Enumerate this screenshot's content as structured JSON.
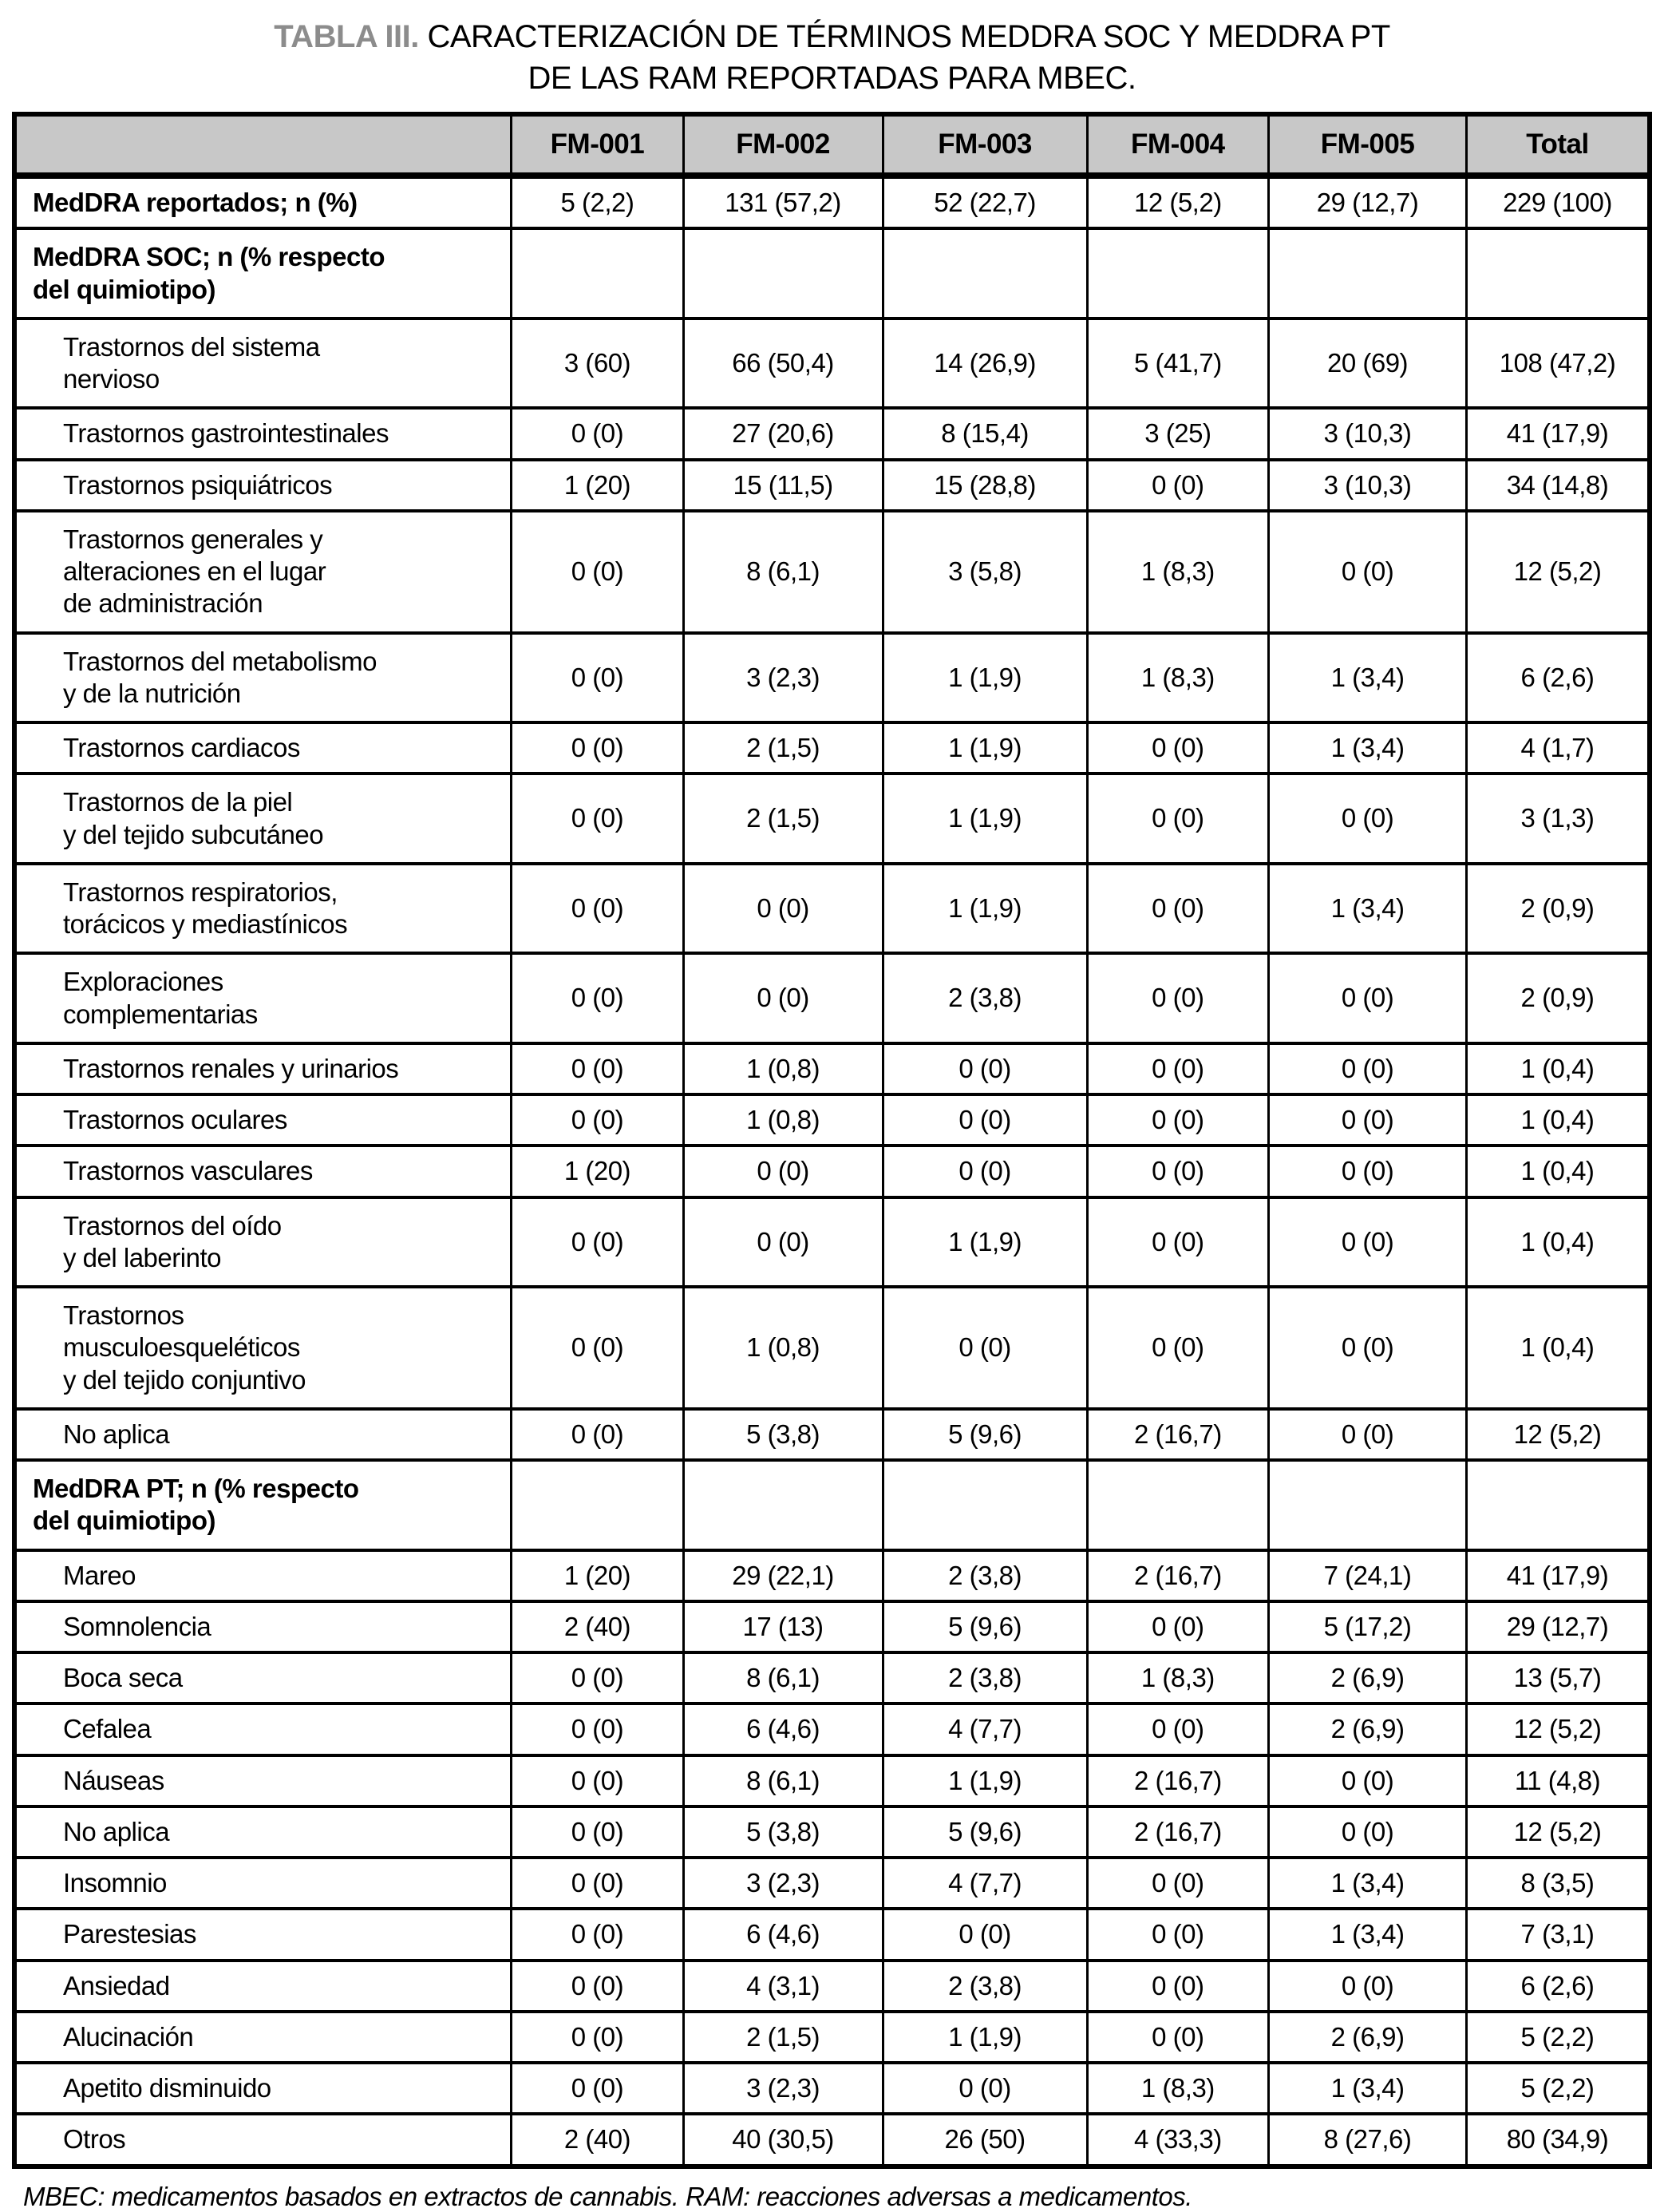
{
  "title": {
    "table_number": "TABLA III.",
    "text": " CARACTERIZACIÓN DE TÉRMINOS MEDDRA SOC Y MEDDRA PT\nDE LAS RAM REPORTADAS PARA MBEC."
  },
  "footnote": "MBEC: medicamentos basados en extractos de cannabis. RAM: reacciones adversas a medicamentos.",
  "colors": {
    "header_bg": "#c8c8c8",
    "title_number_gray": "#8c8c8c",
    "border": "#000000"
  },
  "table": {
    "columns": [
      "",
      "FM-001",
      "FM-002",
      "FM-003",
      "FM-004",
      "FM-005",
      "Total"
    ],
    "rows": [
      {
        "label": "MedDRA reportados; n (%)",
        "type": "bold",
        "values": [
          "5 (2,2)",
          "131 (57,2)",
          "52 (22,7)",
          "12 (5,2)",
          "29 (12,7)",
          "229 (100)"
        ]
      },
      {
        "label": "MedDRA SOC; n (% respecto\ndel quimiotipo)",
        "type": "section",
        "values": [
          "",
          "",
          "",
          "",
          "",
          ""
        ]
      },
      {
        "label": "Trastornos del sistema\nnervioso",
        "type": "data",
        "values": [
          "3 (60)",
          "66 (50,4)",
          "14 (26,9)",
          "5 (41,7)",
          "20 (69)",
          "108 (47,2)"
        ]
      },
      {
        "label": "Trastornos gastrointestinales",
        "type": "data",
        "values": [
          "0 (0)",
          "27 (20,6)",
          "8 (15,4)",
          "3 (25)",
          "3 (10,3)",
          "41 (17,9)"
        ]
      },
      {
        "label": "Trastornos psiquiátricos",
        "type": "data",
        "values": [
          "1 (20)",
          "15 (11,5)",
          "15 (28,8)",
          "0 (0)",
          "3 (10,3)",
          "34 (14,8)"
        ]
      },
      {
        "label": "Trastornos generales y\nalteraciones en el lugar\nde administración",
        "type": "data",
        "values": [
          "0 (0)",
          "8 (6,1)",
          "3 (5,8)",
          "1 (8,3)",
          "0 (0)",
          "12 (5,2)"
        ]
      },
      {
        "label": "Trastornos del metabolismo\ny de la nutrición",
        "type": "data",
        "values": [
          "0 (0)",
          "3 (2,3)",
          "1 (1,9)",
          "1 (8,3)",
          "1 (3,4)",
          "6 (2,6)"
        ]
      },
      {
        "label": "Trastornos cardiacos",
        "type": "data",
        "values": [
          "0 (0)",
          "2 (1,5)",
          "1 (1,9)",
          "0 (0)",
          "1 (3,4)",
          "4 (1,7)"
        ]
      },
      {
        "label": "Trastornos de la piel\ny del tejido subcutáneo",
        "type": "data",
        "values": [
          "0 (0)",
          "2 (1,5)",
          "1 (1,9)",
          "0 (0)",
          "0 (0)",
          "3 (1,3)"
        ]
      },
      {
        "label": "Trastornos respiratorios,\ntorácicos y mediastínicos",
        "type": "data",
        "values": [
          "0 (0)",
          "0 (0)",
          "1 (1,9)",
          "0 (0)",
          "1 (3,4)",
          "2 (0,9)"
        ]
      },
      {
        "label": "Exploraciones\ncomplementarias",
        "type": "data",
        "values": [
          "0 (0)",
          "0 (0)",
          "2 (3,8)",
          "0 (0)",
          "0 (0)",
          "2 (0,9)"
        ]
      },
      {
        "label": "Trastornos renales y urinarios",
        "type": "data",
        "values": [
          "0 (0)",
          "1 (0,8)",
          "0 (0)",
          "0 (0)",
          "0 (0)",
          "1 (0,4)"
        ]
      },
      {
        "label": "Trastornos oculares",
        "type": "data",
        "values": [
          "0 (0)",
          "1 (0,8)",
          "0 (0)",
          "0 (0)",
          "0 (0)",
          "1 (0,4)"
        ]
      },
      {
        "label": "Trastornos vasculares",
        "type": "data",
        "values": [
          "1 (20)",
          "0 (0)",
          "0 (0)",
          "0 (0)",
          "0 (0)",
          "1 (0,4)"
        ]
      },
      {
        "label": "Trastornos del oído\ny del laberinto",
        "type": "data",
        "values": [
          "0 (0)",
          "0 (0)",
          "1 (1,9)",
          "0 (0)",
          "0 (0)",
          "1 (0,4)"
        ]
      },
      {
        "label": "Trastornos\nmusculoesqueléticos\ny del tejido conjuntivo",
        "type": "data",
        "values": [
          "0 (0)",
          "1 (0,8)",
          "0 (0)",
          "0 (0)",
          "0 (0)",
          "1 (0,4)"
        ]
      },
      {
        "label": "No aplica",
        "type": "data",
        "values": [
          "0 (0)",
          "5 (3,8)",
          "5 (9,6)",
          "2 (16,7)",
          "0 (0)",
          "12 (5,2)"
        ]
      },
      {
        "label": "MedDRA PT; n (% respecto\ndel quimiotipo)",
        "type": "section",
        "values": [
          "",
          "",
          "",
          "",
          "",
          ""
        ]
      },
      {
        "label": "Mareo",
        "type": "data",
        "values": [
          "1 (20)",
          "29 (22,1)",
          "2 (3,8)",
          "2 (16,7)",
          "7 (24,1)",
          "41 (17,9)"
        ]
      },
      {
        "label": "Somnolencia",
        "type": "data",
        "values": [
          "2 (40)",
          "17 (13)",
          "5 (9,6)",
          "0 (0)",
          "5 (17,2)",
          "29 (12,7)"
        ]
      },
      {
        "label": "Boca seca",
        "type": "data",
        "values": [
          "0 (0)",
          "8 (6,1)",
          "2 (3,8)",
          "1 (8,3)",
          "2 (6,9)",
          "13 (5,7)"
        ]
      },
      {
        "label": "Cefalea",
        "type": "data",
        "values": [
          "0 (0)",
          "6 (4,6)",
          "4 (7,7)",
          "0 (0)",
          "2 (6,9)",
          "12 (5,2)"
        ]
      },
      {
        "label": "Náuseas",
        "type": "data",
        "values": [
          "0 (0)",
          "8 (6,1)",
          "1 (1,9)",
          "2 (16,7)",
          "0 (0)",
          "11 (4,8)"
        ]
      },
      {
        "label": "No aplica",
        "type": "data",
        "values": [
          "0 (0)",
          "5 (3,8)",
          "5 (9,6)",
          "2 (16,7)",
          "0 (0)",
          "12 (5,2)"
        ]
      },
      {
        "label": "Insomnio",
        "type": "data",
        "values": [
          "0 (0)",
          "3 (2,3)",
          "4 (7,7)",
          "0 (0)",
          "1 (3,4)",
          "8 (3,5)"
        ]
      },
      {
        "label": "Parestesias",
        "type": "data",
        "values": [
          "0 (0)",
          "6 (4,6)",
          "0 (0)",
          "0 (0)",
          "1 (3,4)",
          "7 (3,1)"
        ]
      },
      {
        "label": "Ansiedad",
        "type": "data",
        "values": [
          "0 (0)",
          "4 (3,1)",
          "2 (3,8)",
          "0 (0)",
          "0 (0)",
          "6 (2,6)"
        ]
      },
      {
        "label": "Alucinación",
        "type": "data",
        "values": [
          "0 (0)",
          "2 (1,5)",
          "1 (1,9)",
          "0 (0)",
          "2 (6,9)",
          "5 (2,2)"
        ]
      },
      {
        "label": "Apetito disminuido",
        "type": "data",
        "values": [
          "0 (0)",
          "3 (2,3)",
          "0 (0)",
          "1 (8,3)",
          "1 (3,4)",
          "5 (2,2)"
        ]
      },
      {
        "label": "Otros",
        "type": "data",
        "values": [
          "2 (40)",
          "40 (30,5)",
          "26 (50)",
          "4 (33,3)",
          "8 (27,6)",
          "80 (34,9)"
        ]
      }
    ]
  }
}
